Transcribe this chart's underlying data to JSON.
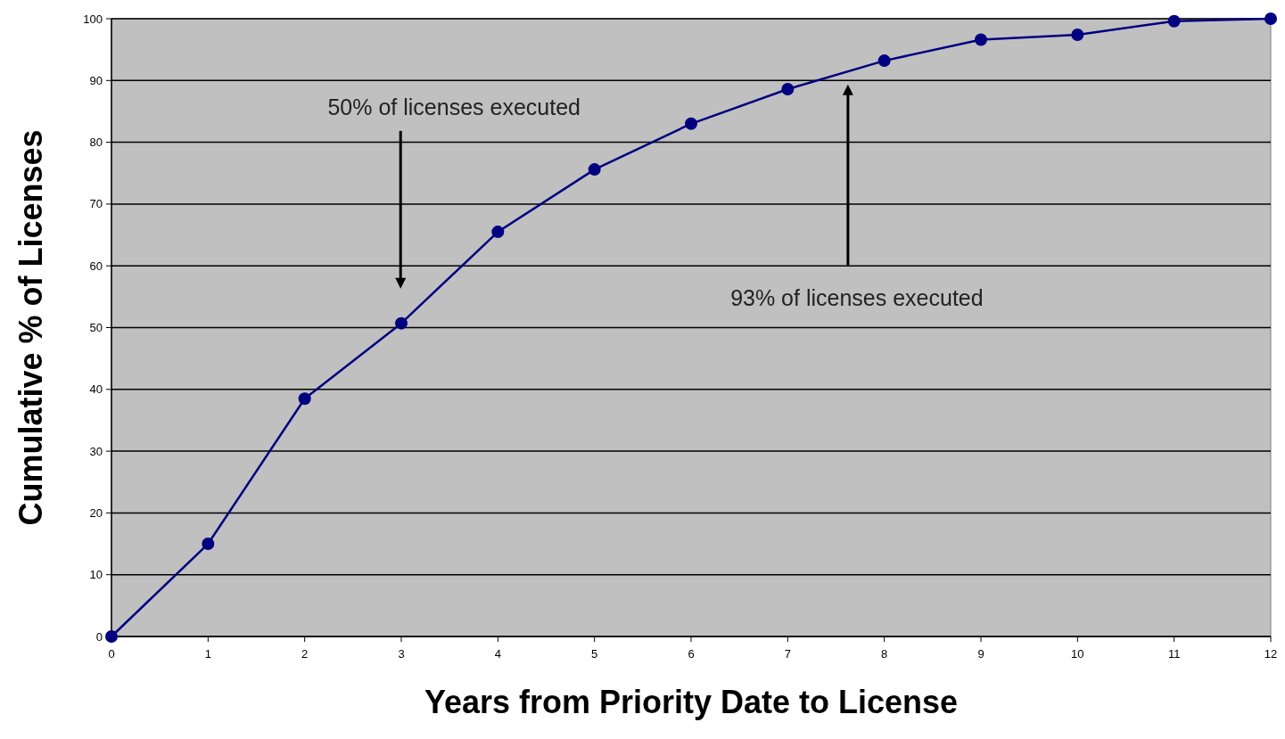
{
  "chart_data": {
    "type": "line",
    "xlabel": "Years from Priority Date to License",
    "ylabel": "Cumulative % of Licenses",
    "x": [
      0,
      1,
      2,
      3,
      4,
      5,
      6,
      7,
      8,
      9,
      10,
      11,
      12
    ],
    "series": [
      {
        "color": "#000080",
        "values": [
          0,
          15,
          38.5,
          50.7,
          65.5,
          75.6,
          83,
          88.6,
          93.2,
          96.6,
          97.4,
          99.6,
          100
        ]
      }
    ],
    "xlim": [
      0,
      12
    ],
    "xticks": [
      0,
      1,
      2,
      3,
      4,
      5,
      6,
      7,
      8,
      9,
      10,
      11,
      12
    ],
    "ylim": [
      0,
      100
    ],
    "yticks": [
      0,
      10,
      20,
      30,
      40,
      50,
      60,
      70,
      80,
      90,
      100
    ],
    "grid": "y",
    "marker": "circle",
    "line_style": "solid",
    "annotations": [
      "50% of licenses executed",
      "93% of licenses executed"
    ]
  }
}
